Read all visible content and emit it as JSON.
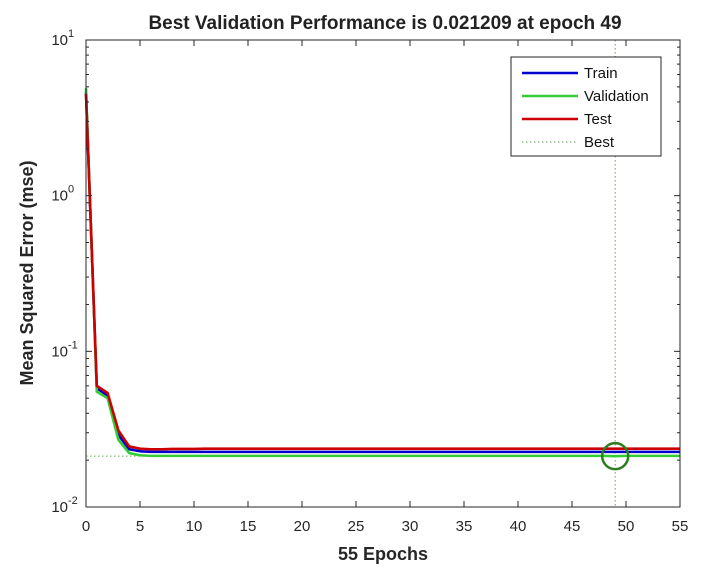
{
  "chart_data": {
    "type": "line",
    "title": "Best Validation Performance is 0.021209 at epoch 49",
    "xlabel": "55 Epochs",
    "ylabel": "Mean Squared Error  (mse)",
    "xlim": [
      0,
      55
    ],
    "ylim": [
      0.01,
      10
    ],
    "yscale": "log",
    "grid": false,
    "legend_position": "top-right",
    "x_ticks": [
      0,
      5,
      10,
      15,
      20,
      25,
      30,
      35,
      40,
      45,
      50,
      55
    ],
    "y_ticks": [
      {
        "value": 0.01,
        "base": "10",
        "exp": "-2"
      },
      {
        "value": 0.1,
        "base": "10",
        "exp": "-1"
      },
      {
        "value": 1,
        "base": "10",
        "exp": "0"
      },
      {
        "value": 10,
        "base": "10",
        "exp": "1"
      }
    ],
    "x": [
      0,
      1,
      2,
      3,
      4,
      5,
      6,
      7,
      8,
      9,
      10,
      11,
      12,
      13,
      14,
      15,
      16,
      17,
      18,
      19,
      20,
      21,
      22,
      23,
      24,
      25,
      26,
      27,
      28,
      29,
      30,
      31,
      32,
      33,
      34,
      35,
      36,
      37,
      38,
      39,
      40,
      41,
      42,
      43,
      44,
      45,
      46,
      47,
      48,
      49,
      50,
      51,
      52,
      53,
      54,
      55
    ],
    "series": [
      {
        "name": "Train",
        "color": "#0000cc",
        "values": [
          4.6,
          0.058,
          0.052,
          0.029,
          0.0235,
          0.0228,
          0.0226,
          0.0226,
          0.0226,
          0.0226,
          0.0226,
          0.0226,
          0.0226,
          0.0226,
          0.0226,
          0.0226,
          0.0226,
          0.0226,
          0.0226,
          0.0226,
          0.0226,
          0.0226,
          0.0226,
          0.0226,
          0.0226,
          0.0226,
          0.0226,
          0.0226,
          0.0226,
          0.0226,
          0.0226,
          0.0226,
          0.0226,
          0.0226,
          0.0226,
          0.0226,
          0.0226,
          0.0226,
          0.0226,
          0.0226,
          0.0226,
          0.0226,
          0.0226,
          0.0226,
          0.0226,
          0.0226,
          0.0226,
          0.0226,
          0.0226,
          0.0226,
          0.0226,
          0.0226,
          0.0226,
          0.0226,
          0.0226,
          0.0226
        ]
      },
      {
        "name": "Validation",
        "color": "#33cc33",
        "values": [
          4.9,
          0.055,
          0.05,
          0.027,
          0.0222,
          0.0215,
          0.0213,
          0.0213,
          0.0213,
          0.0213,
          0.0213,
          0.0213,
          0.0213,
          0.0213,
          0.0213,
          0.0213,
          0.0213,
          0.0213,
          0.0213,
          0.0213,
          0.0213,
          0.0213,
          0.0213,
          0.0213,
          0.0213,
          0.0213,
          0.0213,
          0.0213,
          0.0213,
          0.0213,
          0.0213,
          0.0213,
          0.0213,
          0.0213,
          0.0213,
          0.0213,
          0.0213,
          0.0213,
          0.0213,
          0.0213,
          0.0213,
          0.0213,
          0.0213,
          0.0213,
          0.0213,
          0.0213,
          0.0213,
          0.0213,
          0.0213,
          0.021209,
          0.0213,
          0.0213,
          0.0213,
          0.0213,
          0.0213,
          0.0213
        ]
      },
      {
        "name": "Test",
        "color": "#cc0000",
        "values": [
          4.5,
          0.06,
          0.054,
          0.031,
          0.0245,
          0.0237,
          0.0235,
          0.0235,
          0.0236,
          0.0236,
          0.0236,
          0.0237,
          0.0237,
          0.0237,
          0.0237,
          0.0237,
          0.0237,
          0.0237,
          0.0237,
          0.0237,
          0.0237,
          0.0237,
          0.0237,
          0.0237,
          0.0237,
          0.0237,
          0.0237,
          0.0237,
          0.0237,
          0.0237,
          0.0237,
          0.0237,
          0.0237,
          0.0237,
          0.0237,
          0.0237,
          0.0237,
          0.0237,
          0.0237,
          0.0237,
          0.0237,
          0.0237,
          0.0237,
          0.0237,
          0.0237,
          0.0237,
          0.0237,
          0.0237,
          0.0237,
          0.0237,
          0.0237,
          0.0237,
          0.0237,
          0.0237,
          0.0237,
          0.0237
        ]
      }
    ],
    "best": {
      "name": "Best",
      "epoch": 49,
      "value": 0.021209,
      "line_color": "#66aa55",
      "circle_color": "#2e7d1e"
    }
  }
}
